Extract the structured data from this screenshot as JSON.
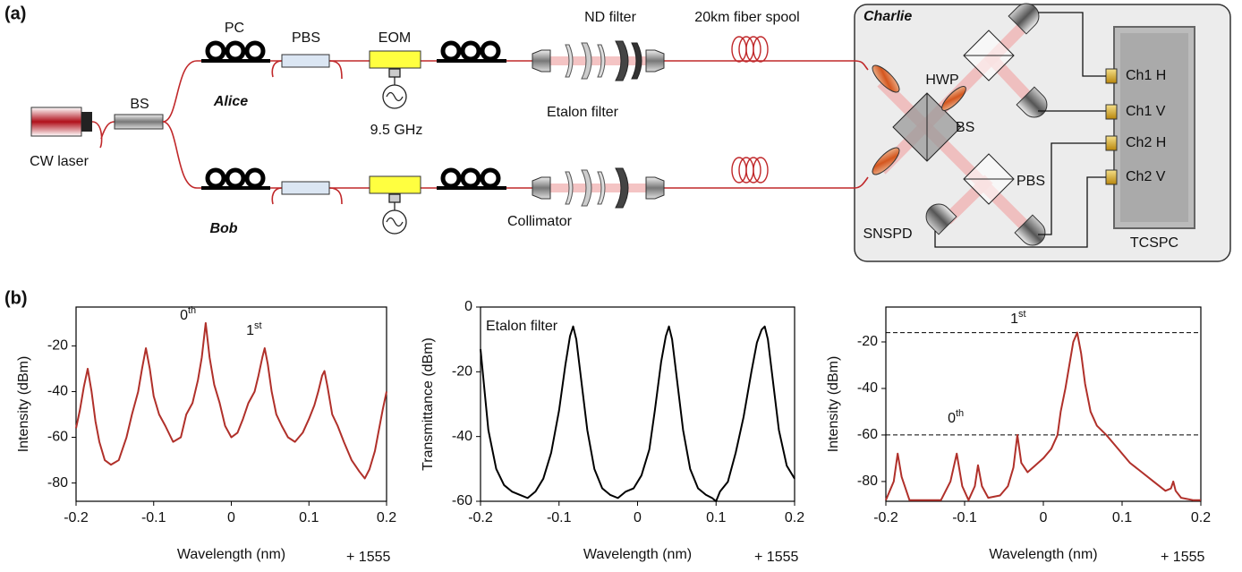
{
  "panel_labels": [
    "(a)",
    "(b)"
  ],
  "diagram": {
    "labels": [
      "PC",
      "PBS",
      "EOM",
      "ND filter",
      "20km fiber spool",
      "Charlie",
      "BS",
      "CW laser",
      "Alice",
      "9.5 GHz",
      "Etalon filter",
      "HWP",
      "BS",
      "Ch1 H",
      "Ch1 V",
      "Ch2 H",
      "Ch2 V",
      "PBS",
      "Bob",
      "Collimator",
      "SNSPD",
      "TCSPC"
    ]
  },
  "chart_data": [
    {
      "type": "line",
      "ylabel": "Intensity (dBm)",
      "xlabel": "Wavelength (nm)",
      "x_offset": "+ 1555",
      "color": "#b0302a",
      "xlim": [
        -0.2,
        0.2
      ],
      "xticks": [
        -0.2,
        -0.1,
        0,
        0.1,
        0.2
      ],
      "ylim": [
        -88,
        -3
      ],
      "yticks": [
        -20,
        -40,
        -60,
        -80
      ],
      "annotations": [
        {
          "text": "0",
          "sup": "th"
        },
        {
          "text": "1",
          "sup": "st"
        }
      ],
      "x": [
        -0.2,
        -0.195,
        -0.19,
        -0.185,
        -0.18,
        -0.175,
        -0.17,
        -0.163,
        -0.155,
        -0.145,
        -0.135,
        -0.128,
        -0.12,
        -0.115,
        -0.11,
        -0.105,
        -0.1,
        -0.093,
        -0.085,
        -0.075,
        -0.065,
        -0.058,
        -0.05,
        -0.043,
        -0.038,
        -0.033,
        -0.028,
        -0.022,
        -0.015,
        -0.008,
        0,
        0.008,
        0.015,
        0.022,
        0.03,
        0.035,
        0.04,
        0.043,
        0.047,
        0.052,
        0.058,
        0.065,
        0.073,
        0.082,
        0.092,
        0.1,
        0.107,
        0.112,
        0.117,
        0.12,
        0.124,
        0.13,
        0.137,
        0.145,
        0.155,
        0.165,
        0.172,
        0.178,
        0.185,
        0.19,
        0.195,
        0.2
      ],
      "values": [
        -56,
        -48,
        -38,
        -30,
        -40,
        -53,
        -62,
        -70,
        -72,
        -70,
        -60,
        -50,
        -40,
        -30,
        -21,
        -30,
        -42,
        -50,
        -55,
        -62,
        -60,
        -50,
        -45,
        -35,
        -25,
        -10,
        -25,
        -37,
        -45,
        -55,
        -60,
        -58,
        -52,
        -45,
        -40,
        -33,
        -25,
        -21,
        -28,
        -40,
        -50,
        -55,
        -60,
        -62,
        -58,
        -52,
        -46,
        -40,
        -33,
        -31,
        -38,
        -50,
        -55,
        -62,
        -70,
        -75,
        -78,
        -74,
        -66,
        -57,
        -48,
        -40
      ]
    },
    {
      "type": "line",
      "ylabel": "Transmittance (dBm)",
      "xlabel": "Wavelength (nm)",
      "x_offset": "+ 1555",
      "color": "#000000",
      "xlim": [
        -0.2,
        0.2
      ],
      "xticks": [
        -0.2,
        -0.1,
        0,
        0.1,
        0.2
      ],
      "ylim": [
        -60,
        0
      ],
      "yticks": [
        0,
        -20,
        -40,
        -60
      ],
      "annotations": [
        {
          "text": "Etalon filter"
        }
      ],
      "x": [
        -0.2,
        -0.19,
        -0.18,
        -0.17,
        -0.16,
        -0.15,
        -0.14,
        -0.13,
        -0.12,
        -0.11,
        -0.1,
        -0.092,
        -0.086,
        -0.082,
        -0.078,
        -0.072,
        -0.064,
        -0.055,
        -0.045,
        -0.035,
        -0.025,
        -0.015,
        -0.005,
        0.005,
        0.015,
        0.022,
        0.03,
        0.036,
        0.04,
        0.044,
        0.05,
        0.058,
        0.067,
        0.077,
        0.087,
        0.095,
        0.1,
        0.105,
        0.115,
        0.125,
        0.135,
        0.145,
        0.152,
        0.158,
        0.162,
        0.166,
        0.172,
        0.18,
        0.19,
        0.2
      ],
      "values": [
        -13,
        -38,
        -50,
        -55,
        -57,
        -58,
        -59,
        -57,
        -53,
        -45,
        -32,
        -18,
        -9,
        -6,
        -10,
        -22,
        -38,
        -50,
        -56,
        -58,
        -59,
        -57,
        -56,
        -52,
        -44,
        -32,
        -17,
        -9,
        -6,
        -10,
        -22,
        -38,
        -50,
        -56,
        -58,
        -59,
        -60,
        -57,
        -54,
        -45,
        -34,
        -20,
        -11,
        -7,
        -6,
        -10,
        -22,
        -38,
        -49,
        -53
      ]
    },
    {
      "type": "line",
      "ylabel": "Intensity (dBm)",
      "xlabel": "Wavelength (nm)",
      "x_offset": "+ 1555",
      "color": "#b0302a",
      "xlim": [
        -0.2,
        0.2
      ],
      "xticks": [
        -0.2,
        -0.1,
        0,
        0.1,
        0.2
      ],
      "ylim": [
        -88.5,
        -5
      ],
      "yticks": [
        -20,
        -40,
        -60,
        -80
      ],
      "hlines": [
        -16,
        -60
      ],
      "annotations": [
        {
          "text": "1",
          "sup": "st"
        },
        {
          "text": "0",
          "sup": "th"
        }
      ],
      "x": [
        -0.2,
        -0.19,
        -0.185,
        -0.18,
        -0.17,
        -0.15,
        -0.13,
        -0.118,
        -0.11,
        -0.103,
        -0.095,
        -0.087,
        -0.083,
        -0.078,
        -0.07,
        -0.055,
        -0.045,
        -0.038,
        -0.033,
        -0.028,
        -0.02,
        -0.01,
        0,
        0.01,
        0.018,
        0.022,
        0.028,
        0.033,
        0.038,
        0.043,
        0.048,
        0.053,
        0.06,
        0.068,
        0.08,
        0.095,
        0.11,
        0.125,
        0.14,
        0.155,
        0.162,
        0.165,
        0.168,
        0.175,
        0.19,
        0.197,
        0.2
      ],
      "values": [
        -88,
        -80,
        -68,
        -78,
        -88,
        -88,
        -88,
        -80,
        -68,
        -82,
        -88,
        -82,
        -73,
        -82,
        -87,
        -86,
        -82,
        -74,
        -60,
        -72,
        -76,
        -73,
        -70,
        -66,
        -60,
        -50,
        -40,
        -30,
        -20,
        -16,
        -25,
        -38,
        -50,
        -56,
        -60,
        -66,
        -72,
        -76,
        -80,
        -84,
        -83,
        -80,
        -84,
        -87,
        -88,
        -88,
        -88
      ]
    }
  ]
}
